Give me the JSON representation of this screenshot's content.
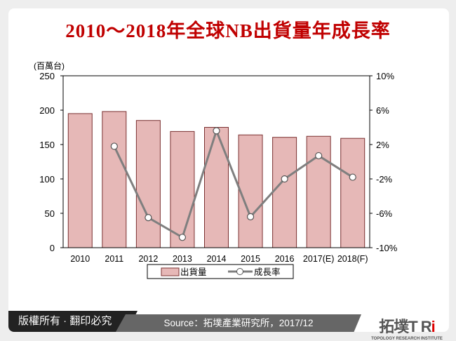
{
  "title": "2010～2018年全球NB出貨量年成長率",
  "chart_data": {
    "type": "bar+line",
    "title": "2010～2018年全球NB出貨量年成長率",
    "categories": [
      "2010",
      "2011",
      "2012",
      "2013",
      "2014",
      "2015",
      "2016",
      "2017(E)",
      "2018(F)"
    ],
    "y_left_label": "(百萬台)",
    "y_left_ticks": [
      "0",
      "50",
      "100",
      "150",
      "200",
      "250"
    ],
    "y_left_range": [
      0,
      250
    ],
    "y_right_ticks": [
      "-10%",
      "-6%",
      "-2%",
      "2%",
      "6%",
      "10%"
    ],
    "y_right_range": [
      -10,
      10
    ],
    "series": [
      {
        "name": "出貨量",
        "type": "bar",
        "axis": "left",
        "color": "#e6b8b7",
        "values": [
          195,
          198,
          185,
          169,
          175,
          164,
          160.5,
          162,
          159
        ]
      },
      {
        "name": "成長率",
        "type": "line",
        "axis": "right",
        "color": "#7f7f7f",
        "values": [
          null,
          1.8,
          -6.5,
          -8.8,
          3.6,
          -6.4,
          -2.0,
          0.7,
          -1.8
        ]
      }
    ],
    "legend_position": "bottom",
    "grid": false
  },
  "footer": {
    "copyright": "版權所有 · 翻印必究",
    "source": "Source：拓墣產業研究所，2017/12",
    "logo_text": "拓墣TRi",
    "logo_sub": "TOPOLOGY RESEARCH INSTITUTE"
  }
}
